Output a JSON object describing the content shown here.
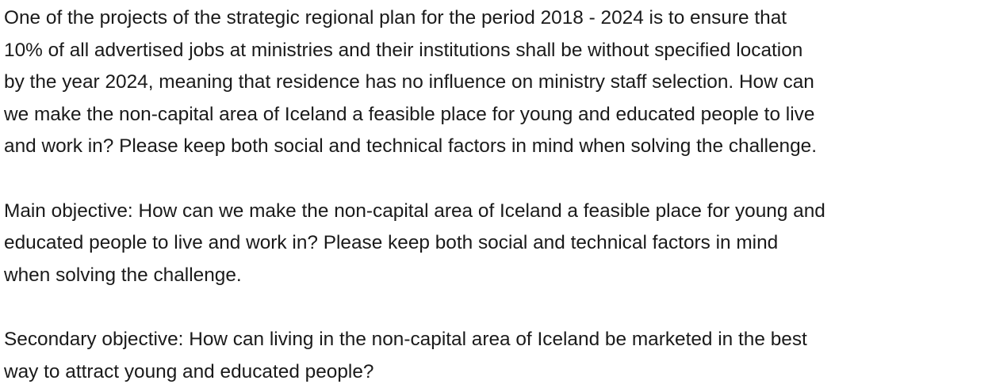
{
  "paragraphs": [
    {
      "lines": [
        "One of the projects of the strategic regional plan for the period 2018 - 2024 is to ensure that",
        "10% of all advertised jobs at ministries and their institutions shall be without specified location",
        "by the year 2024, meaning that residence has no influence on ministry staff selection. How can",
        "we make the non-capital area of Iceland a feasible place for young and educated people to live",
        "and work in? Please keep both social and technical factors in mind when solving the challenge."
      ]
    },
    {
      "lines": [
        "Main objective: How can we make the non-capital area of Iceland a feasible place for young and",
        "educated people to live and work in? Please keep both social and technical factors in mind",
        "when solving the challenge."
      ]
    },
    {
      "lines": [
        "Secondary objective: How can living in the non-capital area of Iceland be marketed in the best",
        "way to attract young and educated people?"
      ]
    }
  ]
}
